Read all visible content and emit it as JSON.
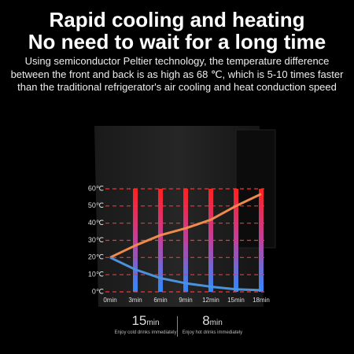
{
  "header": {
    "title_lines": [
      "Rapid cooling and heating",
      "No need to wait for a long time"
    ],
    "description": "Using semiconductor Peltier technology, the temperature difference between the front and back is as high as 68 ℃, which is 5-10 times faster than the traditional refrigerator's air cooling and heat conduction speed"
  },
  "chart_data": {
    "type": "line",
    "categories": [
      "0min",
      "3min",
      "6min",
      "9min",
      "12min",
      "15min",
      "18min"
    ],
    "series": [
      {
        "color": "#ee8a4c",
        "values": [
          20,
          27,
          33,
          37,
          42,
          50,
          57
        ]
      },
      {
        "color": "#4a92dc",
        "values": [
          20,
          13,
          8,
          5,
          3,
          1.5,
          1
        ]
      }
    ],
    "ylim": [
      0,
      60
    ],
    "yticks": [
      {
        "value": 0,
        "label": "0℃"
      },
      {
        "value": 10,
        "label": "10℃"
      },
      {
        "value": 20,
        "label": "20℃"
      },
      {
        "value": 30,
        "label": "30℃"
      },
      {
        "value": 40,
        "label": "40℃"
      },
      {
        "value": 50,
        "label": "50℃"
      },
      {
        "value": 60,
        "label": "60℃"
      }
    ],
    "grid": true
  },
  "stats": [
    {
      "number": "15",
      "unit": "min",
      "caption": "Enjoy cold drinks immediately"
    },
    {
      "number": "8",
      "unit": "min",
      "caption": "Enjoy hot drinks immediately"
    }
  ]
}
